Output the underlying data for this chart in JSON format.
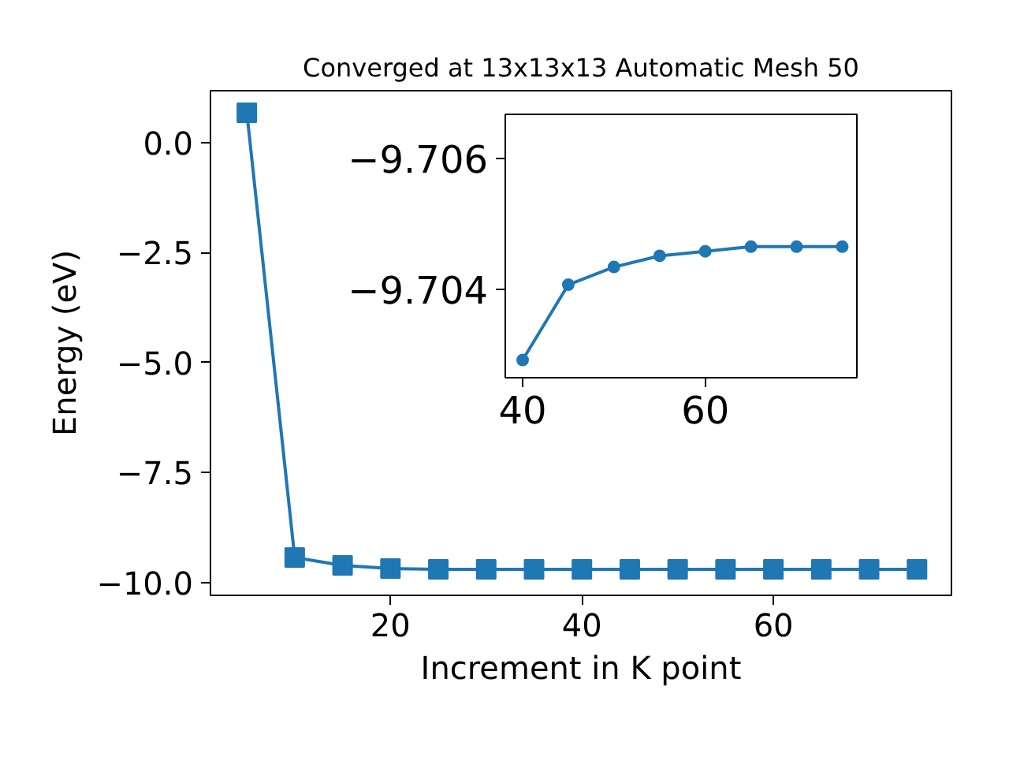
{
  "chart_data": [
    {
      "type": "line",
      "title": "Converged at 13x13x13 Automatic Mesh 50",
      "xlabel": "Increment in K point",
      "ylabel": "Energy (eV)",
      "x": [
        5,
        10,
        15,
        20,
        25,
        30,
        35,
        40,
        45,
        50,
        55,
        60,
        65,
        70,
        75
      ],
      "series": [
        {
          "color": "#1f77b4",
          "values": [
            0.68,
            -9.43,
            -9.61,
            -9.68,
            -9.7,
            -9.7,
            -9.7,
            -9.7,
            -9.7,
            -9.7,
            -9.7,
            -9.7,
            -9.7,
            -9.7,
            -9.7
          ]
        }
      ],
      "marker": "square",
      "line_style": "solid",
      "grid": false,
      "xlim": [
        1.2,
        78.6
      ],
      "ylim": [
        -10.29,
        1.18
      ],
      "xticks": [
        20,
        40,
        60
      ],
      "yticks": [
        {
          "value": 0,
          "label": "0.0"
        },
        {
          "value": -2.5,
          "label": "−2.5"
        },
        {
          "value": -5,
          "label": "−5.0"
        },
        {
          "value": -7.5,
          "label": "−7.5"
        },
        {
          "value": -10,
          "label": "−10.0"
        }
      ]
    },
    {
      "type": "line",
      "x": [
        40,
        45,
        50,
        55,
        60,
        65,
        70,
        75
      ],
      "series": [
        {
          "color": "#1f77b4",
          "values": [
            -9.70292,
            -9.70407,
            -9.70434,
            -9.70451,
            -9.70458,
            -9.70465,
            -9.70465,
            -9.70465
          ]
        }
      ],
      "marker": "circle",
      "line_style": "solid",
      "grid": false,
      "xlim": [
        38.1,
        76.6
      ],
      "ylim": [
        -9.70265,
        -9.70667
      ],
      "xticks": [
        40,
        60
      ],
      "yticks": [
        {
          "value": -9.706,
          "label": "−9.706"
        },
        {
          "value": -9.704,
          "label": "−9.704"
        }
      ]
    }
  ]
}
